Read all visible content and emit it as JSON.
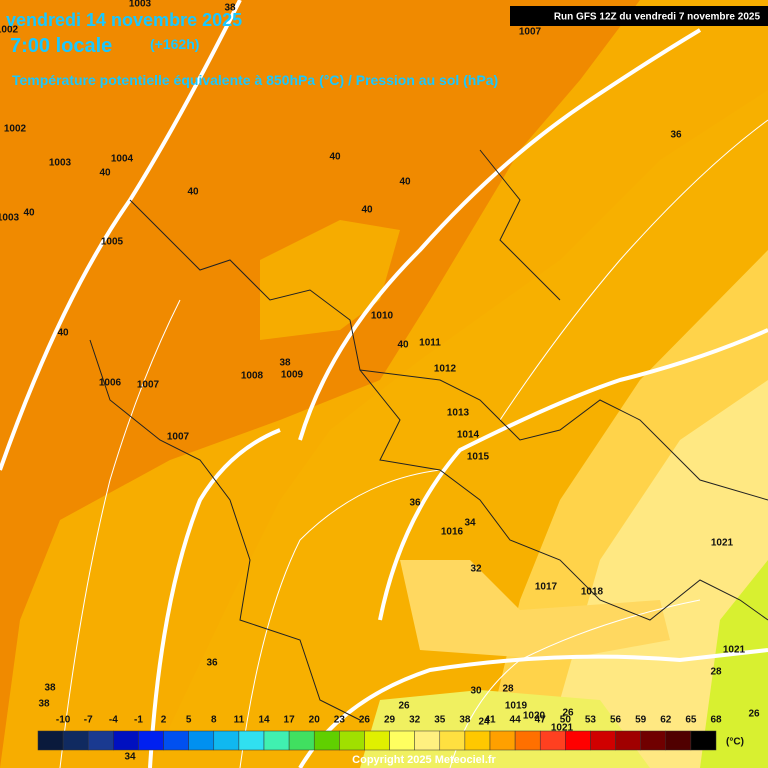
{
  "header": {
    "date": "vendredi 14 novembre 2025",
    "time": "7:00 locale",
    "lead": "(+162h)",
    "subtitle": "Température potentielle équivalente à 850hPa (°C) / Pression au sol (hPa)",
    "run": "Run GFS 12Z du vendredi 7 novembre 2025"
  },
  "isobar_labels": [
    "1003",
    "1007",
    "1002",
    "1002",
    "1003",
    "1004",
    "1003",
    "1005",
    "1006",
    "1007",
    "1007",
    "1008",
    "1009",
    "1010",
    "1011",
    "1012",
    "1013",
    "1014",
    "1015",
    "1016",
    "1017",
    "1018",
    "1021",
    "1021",
    "1019",
    "1020",
    "1021"
  ],
  "temperature_labels": [
    "38",
    "40",
    "40",
    "40",
    "40",
    "40",
    "40",
    "36",
    "40",
    "38",
    "40",
    "36",
    "34",
    "32",
    "36",
    "38",
    "38",
    "30",
    "28",
    "26",
    "28",
    "26",
    "34",
    "26",
    "24"
  ],
  "legend": {
    "labels": [
      "-10",
      "-7",
      "-4",
      "-1",
      "2",
      "5",
      "8",
      "11",
      "14",
      "17",
      "20",
      "23",
      "26",
      "29",
      "32",
      "35",
      "38",
      "41",
      "44",
      "47",
      "50",
      "53",
      "56",
      "59",
      "62",
      "65",
      "68"
    ],
    "unit": "(°C)",
    "colors": [
      "#0a1a3c",
      "#102a60",
      "#1a3a90",
      "#0010c0",
      "#0020f0",
      "#0050f0",
      "#0090f0",
      "#10b8f0",
      "#30e0f0",
      "#40f0b0",
      "#40e060",
      "#60d000",
      "#a0e000",
      "#e0f000",
      "#ffff60",
      "#fff080",
      "#ffe040",
      "#ffc800",
      "#ffa000",
      "#ff7000",
      "#ff4020",
      "#ff0000",
      "#d00000",
      "#a00000",
      "#700000",
      "#500000",
      "#000000"
    ]
  },
  "copyright": "Copyright 2025 Meteociel.fr"
}
